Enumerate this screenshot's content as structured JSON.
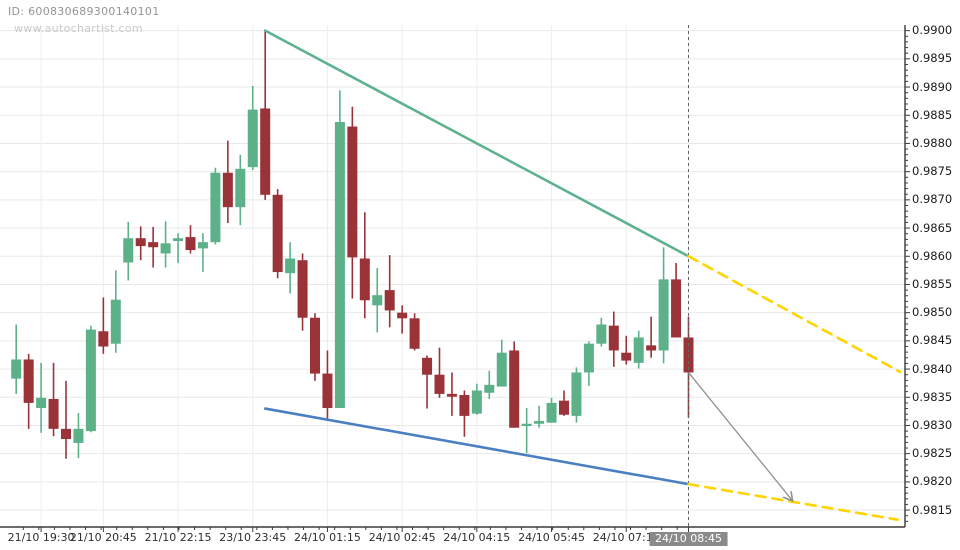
{
  "header": {
    "id_label": "ID: 600830689300140101",
    "watermark": "www.autochartist.com"
  },
  "colors": {
    "background": "#ffffff",
    "candle_up": "#5cb189",
    "candle_down": "#993338",
    "trendline_resistance": "#5fb28e",
    "trendline_support": "#4a7fc1",
    "forecast_dashed": "#ffd400",
    "forecast_arrow": "#8f8f8f",
    "grid_h": "#e9e9e9",
    "grid_v": "#ededed",
    "axis": "#3a3a3a",
    "time_marker": "#666666",
    "x_label_highlight_bg": "#8a8a8a",
    "x_label_highlight_text": "#ffffff"
  },
  "chart_data": {
    "type": "candlestick",
    "grid": true,
    "y_axis_side": "right",
    "y_tick_labels": [
      "0.9900",
      "0.9895",
      "0.9890",
      "0.9885",
      "0.9880",
      "0.9875",
      "0.9870",
      "0.9865",
      "0.9860",
      "0.9855",
      "0.9850",
      "0.9845",
      "0.9840",
      "0.9835",
      "0.9830",
      "0.9825",
      "0.9820",
      "0.9815"
    ],
    "y_range": [
      0.9812,
      0.9901
    ],
    "x_labels": [
      {
        "label": "21/10 19:30",
        "index": 2,
        "highlighted": false
      },
      {
        "label": "21/10 20:45",
        "index": 7,
        "highlighted": false
      },
      {
        "label": "21/10 22:15",
        "index": 13,
        "highlighted": false
      },
      {
        "label": "23/10 23:45",
        "index": 19,
        "highlighted": false
      },
      {
        "label": "24/10 01:15",
        "index": 25,
        "highlighted": false
      },
      {
        "label": "24/10 02:45",
        "index": 31,
        "highlighted": false
      },
      {
        "label": "24/10 04:15",
        "index": 37,
        "highlighted": false
      },
      {
        "label": "24/10 05:45",
        "index": 43,
        "highlighted": false
      },
      {
        "label": "24/10 07:15",
        "index": 49,
        "highlighted": false
      },
      {
        "label": "24/10 08:45",
        "index": 54,
        "highlighted": true
      }
    ],
    "candles_ohlc": [
      [
        0.98383,
        0.98479,
        0.98356,
        0.98417
      ],
      [
        0.98417,
        0.98427,
        0.98294,
        0.9834
      ],
      [
        0.98331,
        0.98411,
        0.98287,
        0.98349
      ],
      [
        0.98347,
        0.98411,
        0.98281,
        0.98294
      ],
      [
        0.98294,
        0.98379,
        0.98241,
        0.98276
      ],
      [
        0.98269,
        0.98322,
        0.98242,
        0.98294
      ],
      [
        0.9829,
        0.98477,
        0.98288,
        0.9847
      ],
      [
        0.98467,
        0.98527,
        0.98427,
        0.9844
      ],
      [
        0.98445,
        0.98575,
        0.98429,
        0.98523
      ],
      [
        0.98589,
        0.98661,
        0.98557,
        0.98632
      ],
      [
        0.98632,
        0.98653,
        0.98593,
        0.98618
      ],
      [
        0.98625,
        0.98652,
        0.9858,
        0.98616
      ],
      [
        0.98605,
        0.98662,
        0.9858,
        0.98623
      ],
      [
        0.98627,
        0.98641,
        0.98588,
        0.98632
      ],
      [
        0.98634,
        0.98655,
        0.98605,
        0.98611
      ],
      [
        0.98614,
        0.98641,
        0.98572,
        0.98625
      ],
      [
        0.98625,
        0.98757,
        0.98621,
        0.98748
      ],
      [
        0.98748,
        0.98805,
        0.98659,
        0.98687
      ],
      [
        0.98687,
        0.9878,
        0.98655,
        0.98755
      ],
      [
        0.98758,
        0.98902,
        0.98753,
        0.9886
      ],
      [
        0.98862,
        0.99,
        0.987,
        0.98709
      ],
      [
        0.98709,
        0.98719,
        0.98561,
        0.98572
      ],
      [
        0.9857,
        0.98625,
        0.98534,
        0.98596
      ],
      [
        0.98593,
        0.98605,
        0.98468,
        0.98491
      ],
      [
        0.98491,
        0.98499,
        0.98379,
        0.98392
      ],
      [
        0.98392,
        0.98433,
        0.98308,
        0.98331
      ],
      [
        0.98331,
        0.98894,
        0.98331,
        0.98838
      ],
      [
        0.9883,
        0.98865,
        0.98525,
        0.98598
      ],
      [
        0.98596,
        0.98678,
        0.9849,
        0.98522
      ],
      [
        0.98513,
        0.98579,
        0.98465,
        0.98531
      ],
      [
        0.9854,
        0.98602,
        0.98474,
        0.98504
      ],
      [
        0.985,
        0.98513,
        0.98463,
        0.9849
      ],
      [
        0.9849,
        0.98499,
        0.98433,
        0.98436
      ],
      [
        0.9842,
        0.98424,
        0.9833,
        0.9839
      ],
      [
        0.9839,
        0.98438,
        0.98349,
        0.98356
      ],
      [
        0.98356,
        0.98394,
        0.98317,
        0.98351
      ],
      [
        0.98354,
        0.98362,
        0.9828,
        0.98317
      ],
      [
        0.98321,
        0.98374,
        0.98319,
        0.98362
      ],
      [
        0.98358,
        0.98397,
        0.98347,
        0.98372
      ],
      [
        0.98369,
        0.98452,
        0.98369,
        0.98429
      ],
      [
        0.98433,
        0.98449,
        0.98296,
        0.98296
      ],
      [
        0.98299,
        0.98331,
        0.98251,
        0.98303
      ],
      [
        0.98303,
        0.98335,
        0.98296,
        0.98308
      ],
      [
        0.98305,
        0.98349,
        0.98305,
        0.9834
      ],
      [
        0.98344,
        0.98362,
        0.98317,
        0.98319
      ],
      [
        0.98317,
        0.98403,
        0.98305,
        0.98394
      ],
      [
        0.98394,
        0.98449,
        0.9837,
        0.98445
      ],
      [
        0.98445,
        0.98491,
        0.9844,
        0.98479
      ],
      [
        0.98477,
        0.98502,
        0.98404,
        0.98433
      ],
      [
        0.98429,
        0.98459,
        0.98408,
        0.98415
      ],
      [
        0.98411,
        0.98468,
        0.98401,
        0.98456
      ],
      [
        0.98442,
        0.98493,
        0.9842,
        0.98433
      ],
      [
        0.98433,
        0.98616,
        0.9841,
        0.98559
      ],
      [
        0.98559,
        0.98588,
        0.98456,
        0.98456
      ],
      [
        0.98456,
        0.98493,
        0.98314,
        0.98394
      ]
    ],
    "trendlines": [
      {
        "name": "resistance-trendline",
        "color": "teal",
        "style": "solid",
        "from_index": 20,
        "from_price": 0.99,
        "to_index": 54,
        "to_price": 0.986
      },
      {
        "name": "resistance-forecast-dashed",
        "color": "yellow",
        "style": "dashed",
        "from_index": 54,
        "from_price": 0.986,
        "to_index": 71,
        "to_price": 0.98395
      },
      {
        "name": "support-trendline",
        "color": "blue",
        "style": "solid",
        "from_index": 20,
        "from_price": 0.9833,
        "to_index": 54,
        "to_price": 0.98196
      },
      {
        "name": "support-forecast-dashed",
        "color": "yellow",
        "style": "dashed",
        "from_index": 54,
        "from_price": 0.98196,
        "to_index": 70.8,
        "to_price": 0.98133
      }
    ],
    "forecast_arrow": {
      "from_index": 54,
      "from_price": 0.98394,
      "to_index": 62.3,
      "to_price": 0.98168
    },
    "current_time_marker_index": 54
  }
}
